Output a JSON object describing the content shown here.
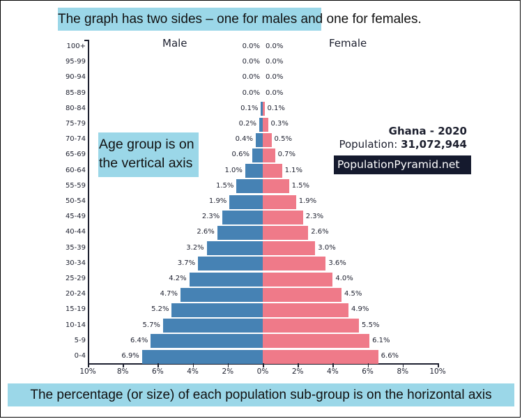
{
  "annotations": {
    "top": "The graph has two sides – one for males and one for females.",
    "left": "Age group is on the vertical axis",
    "bottom": "The percentage (or size) of each population sub-group is on the horizontal axis"
  },
  "info": {
    "country_year": "Ghana - 2020",
    "population_label": "Population: ",
    "population_value": "31,072,944",
    "brand": "PopulationPyramid.net"
  },
  "colors": {
    "male": "#4682b4",
    "female": "#ef7a89",
    "callout_bg": "#9bd7e8",
    "brand_bg": "#151a2e",
    "text": "#1c1f2e"
  },
  "chart_data": {
    "type": "bar",
    "orientation": "horizontal",
    "title": "Ghana - 2020",
    "subtitle": "Population: 31,072,944",
    "categories": [
      "100+",
      "95-99",
      "90-94",
      "85-89",
      "80-84",
      "75-79",
      "70-74",
      "65-69",
      "60-64",
      "55-59",
      "50-54",
      "45-49",
      "40-44",
      "35-39",
      "30-34",
      "25-29",
      "20-24",
      "15-19",
      "10-14",
      "5-9",
      "0-4"
    ],
    "series": [
      {
        "name": "Male",
        "values": [
          0.0,
          0.0,
          0.0,
          0.0,
          0.1,
          0.2,
          0.4,
          0.6,
          1.0,
          1.5,
          1.9,
          2.3,
          2.6,
          3.2,
          3.7,
          4.2,
          4.7,
          5.2,
          5.7,
          6.4,
          6.9
        ]
      },
      {
        "name": "Female",
        "values": [
          0.0,
          0.0,
          0.0,
          0.0,
          0.1,
          0.3,
          0.5,
          0.7,
          1.1,
          1.5,
          1.9,
          2.3,
          2.6,
          3.0,
          3.6,
          4.0,
          4.5,
          4.9,
          5.5,
          6.1,
          6.6
        ]
      }
    ],
    "xlabel": "",
    "ylabel": "",
    "xticks": [
      "10%",
      "8%",
      "6%",
      "4%",
      "2%",
      "0%",
      "2%",
      "4%",
      "6%",
      "8%",
      "10%"
    ],
    "xlim": [
      -10,
      10
    ],
    "grid": false,
    "legend": [
      "Male",
      "Female"
    ],
    "legend_position": "top"
  }
}
